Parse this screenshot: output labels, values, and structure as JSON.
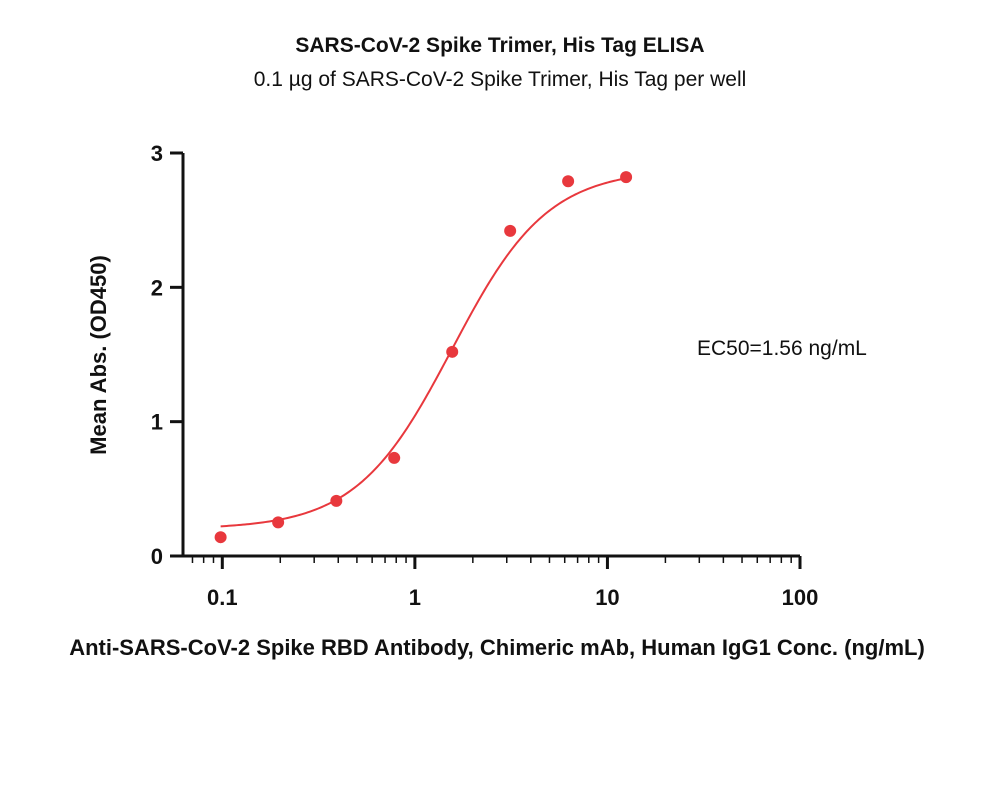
{
  "chart_data": {
    "type": "scatter",
    "title": "SARS-CoV-2 Spike Trimer, His Tag  ELISA",
    "subtitle": "0.1 µg of SARS-CoV-2 Spike Trimer, His Tag  per well",
    "xlabel": "Anti-SARS-CoV-2 Spike RBD Antibody, Chimeric mAb, Human IgG1 Conc. (ng/mL)",
    "ylabel": "Mean Abs. (OD450)",
    "x_scale": "log",
    "xlim": [
      0.0625,
      100
    ],
    "ylim": [
      0,
      3
    ],
    "x_ticks": [
      0.1,
      1,
      10,
      100
    ],
    "x_tick_labels": [
      "0.1",
      "1",
      "10",
      "100"
    ],
    "y_ticks": [
      0,
      1,
      2,
      3
    ],
    "y_tick_labels": [
      "0",
      "1",
      "2",
      "3"
    ],
    "grid": false,
    "annotation": "EC50=1.56 ng/mL",
    "series": [
      {
        "points": [
          {
            "x": 0.098,
            "y": 0.14
          },
          {
            "x": 0.195,
            "y": 0.25
          },
          {
            "x": 0.391,
            "y": 0.41
          },
          {
            "x": 0.781,
            "y": 0.73
          },
          {
            "x": 1.563,
            "y": 1.52
          },
          {
            "x": 3.125,
            "y": 2.42
          },
          {
            "x": 6.25,
            "y": 2.79
          },
          {
            "x": 12.5,
            "y": 2.82
          }
        ],
        "color": "#e8383d"
      }
    ],
    "fit": {
      "model": "4PL",
      "bottom": 0.2,
      "top": 2.88,
      "ec50": 1.56,
      "hill": 1.75,
      "x_range": [
        0.098,
        12.5
      ],
      "color": "#e8383d"
    }
  }
}
